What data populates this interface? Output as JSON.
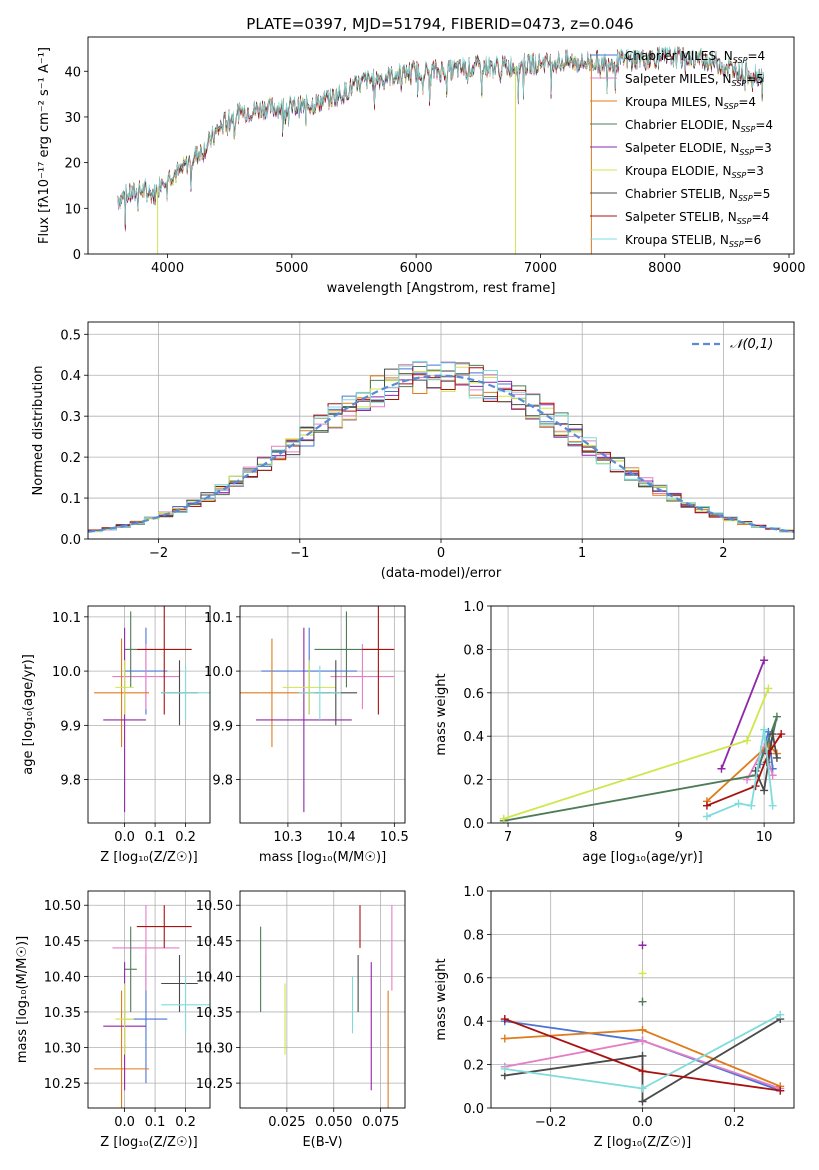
{
  "figure_title": "PLATE=0397, MJD=51794, FIBERID=0473, z=0.046",
  "chart_data": [
    {
      "id": "spectrum",
      "type": "line",
      "title": "PLATE=0397, MJD=51794, FIBERID=0473, z=0.046",
      "xlabel": "wavelength [Angstrom, rest frame]",
      "ylabel": "Flux [fλ10⁻¹⁷ erg cm⁻² s⁻¹ A⁻¹]",
      "xlim": [
        3360,
        9040
      ],
      "ylim": [
        0,
        47.5
      ],
      "xticks": [
        4000,
        5000,
        6000,
        7000,
        8000,
        9000
      ],
      "yticks": [
        0,
        10,
        20,
        30,
        40
      ],
      "grid": false,
      "legend": "upper-right",
      "continuum": {
        "x": [
          3600,
          3700,
          3800,
          3900,
          3950,
          4000,
          4100,
          4200,
          4300,
          4400,
          4500,
          4600,
          4800,
          5000,
          5200,
          5400,
          5600,
          5800,
          6000,
          6200,
          6500,
          6800,
          7000,
          7200,
          7400,
          7600,
          7800,
          8000,
          8200,
          8400,
          8600,
          8800
        ],
        "y": [
          12,
          13,
          14,
          13,
          16,
          17,
          18,
          21,
          23,
          27,
          30,
          31,
          32,
          32,
          33,
          35,
          38,
          39,
          40,
          40,
          41,
          41,
          42,
          42,
          42,
          42,
          43,
          43,
          43,
          42,
          40,
          39
        ]
      },
      "series": [
        {
          "name": "Chabrier MILES, N$_{SSP}$=4",
          "color": "#4a74d6"
        },
        {
          "name": "Salpeter MILES, N$_{SSP}$=5",
          "color": "#e67ec6"
        },
        {
          "name": "Kroupa MILES, N$_{SSP}$=4",
          "color": "#e07b1a"
        },
        {
          "name": "Chabrier ELODIE, N$_{SSP}$=4",
          "color": "#4d7c56"
        },
        {
          "name": "Salpeter ELODIE, N$_{SSP}$=3",
          "color": "#8e27a8"
        },
        {
          "name": "Kroupa ELODIE, N$_{SSP}$=3",
          "color": "#cfe64c"
        },
        {
          "name": "Chabrier STELIB, N$_{SSP}$=5",
          "color": "#4a4a4a"
        },
        {
          "name": "Salpeter STELIB, N$_{SSP}$=4",
          "color": "#a8110f"
        },
        {
          "name": "Kroupa STELIB, N$_{SSP}$=6",
          "color": "#7fdcdc"
        }
      ],
      "legend_labels": [
        [
          "Chabrier MILES, N",
          "SSP",
          "=4"
        ],
        [
          "Salpeter MILES, N",
          "SSP",
          "=5"
        ],
        [
          "Kroupa MILES, N",
          "SSP",
          "=4"
        ],
        [
          "Chabrier ELODIE, N",
          "SSP",
          "=4"
        ],
        [
          "Salpeter ELODIE, N",
          "SSP",
          "=3"
        ],
        [
          "Kroupa ELODIE, N",
          "SSP",
          "=3"
        ],
        [
          "Chabrier STELIB, N",
          "SSP",
          "=5"
        ],
        [
          "Salpeter STELIB, N",
          "SSP",
          "=4"
        ],
        [
          "Kroupa STELIB, N",
          "SSP",
          "=6"
        ]
      ],
      "dropouts": [
        {
          "x": 3920,
          "color": "#cfe64c"
        },
        {
          "x": 6800,
          "color": "#cfe64c"
        },
        {
          "x": 7410,
          "color": "#e07b1a"
        }
      ]
    },
    {
      "id": "residuals",
      "type": "histogram",
      "xlabel": "(data-model)/error",
      "ylabel": "Normed distribution",
      "xlim": [
        -2.5,
        2.5
      ],
      "ylim": [
        0,
        0.53
      ],
      "xticks": [
        -2,
        -1,
        0,
        1,
        2
      ],
      "yticks": [
        0.0,
        0.1,
        0.2,
        0.3,
        0.4,
        0.5
      ],
      "grid": true,
      "legend": "upper-right",
      "reference": {
        "name": "𝒩(0,1)",
        "color": "#5b8ad6"
      },
      "bin_width": 0.1
    },
    {
      "id": "z_age",
      "type": "errorbar",
      "xlabel": "Z [log₁₀(Z/Z☉)]",
      "ylabel": "age [log₁₀(age/yr)]",
      "xlim": [
        -0.12,
        0.28
      ],
      "ylim": [
        9.72,
        10.12
      ],
      "xticks": [
        0.0,
        0.1,
        0.2
      ],
      "yticks": [
        9.8,
        9.9,
        10.0,
        10.1
      ],
      "grid": true
    },
    {
      "id": "mass_age",
      "type": "errorbar",
      "xlabel": "mass [log₁₀(M/M☉)]",
      "ylabel": "",
      "xlim": [
        10.21,
        10.52
      ],
      "ylim": [
        9.72,
        10.12
      ],
      "xticks": [
        10.3,
        10.4,
        10.5
      ],
      "yticks": [
        9.8,
        9.9,
        10.0,
        10.1
      ],
      "grid": true
    },
    {
      "id": "age_weight",
      "type": "line",
      "xlabel": "age [log₁₀(age/yr)]",
      "ylabel": "mass weight",
      "xlim": [
        6.8,
        10.35
      ],
      "ylim": [
        0,
        1
      ],
      "xticks": [
        7,
        8,
        9,
        10
      ],
      "yticks": [
        0.0,
        0.2,
        0.4,
        0.6,
        0.8,
        1.0
      ],
      "grid": true
    },
    {
      "id": "z_mass",
      "type": "errorbar",
      "xlabel": "Z [log₁₀(Z/Z☉)]",
      "ylabel": "mass [log₁₀(M/M☉)]",
      "xlim": [
        -0.12,
        0.28
      ],
      "ylim": [
        10.215,
        10.52
      ],
      "xticks": [
        0.0,
        0.1,
        0.2
      ],
      "yticks": [
        10.25,
        10.3,
        10.35,
        10.4,
        10.45,
        10.5
      ],
      "grid": true
    },
    {
      "id": "ebv_mass",
      "type": "errorbar",
      "xlabel": "E(B-V)",
      "ylabel": "",
      "xlim": [
        0.0,
        0.088
      ],
      "ylim": [
        10.215,
        10.52
      ],
      "xticks": [
        0.025,
        0.05,
        0.075
      ],
      "xtick_labels": [
        "0.025",
        "0.050",
        "0.075"
      ],
      "yticks": [
        10.25,
        10.3,
        10.35,
        10.4,
        10.45,
        10.5
      ],
      "grid": true
    },
    {
      "id": "z_weight",
      "type": "line",
      "xlabel": "Z [log₁₀(Z/Z☉)]",
      "ylabel": "mass weight",
      "xlim": [
        -0.33,
        0.33
      ],
      "ylim": [
        0,
        1
      ],
      "xticks": [
        -0.2,
        0.0,
        0.2
      ],
      "yticks": [
        0.0,
        0.2,
        0.4,
        0.6,
        0.8,
        1.0
      ],
      "grid": true
    }
  ],
  "fits": [
    {
      "name": "Chabrier MILES",
      "color": "#4a74d6",
      "Z": [
        0.07,
        0.07
      ],
      "age": [
        10.0,
        0.08
      ],
      "mass": [
        10.34,
        0.09
      ],
      "ebv": null
    },
    {
      "name": "Salpeter MILES",
      "color": "#e67ec6",
      "Z": [
        0.07,
        0.11
      ],
      "age": [
        9.99,
        0.06
      ],
      "mass": [
        10.44,
        0.06
      ],
      "ebv": [
        0.081,
        0.08
      ]
    },
    {
      "name": "Kroupa MILES",
      "color": "#e07b1a",
      "Z": [
        -0.01,
        0.09
      ],
      "age": [
        9.96,
        0.1
      ],
      "mass": [
        10.27,
        0.11
      ],
      "ebv": [
        0.079,
        0.09
      ]
    },
    {
      "name": "Chabrier ELODIE",
      "color": "#4d7c56",
      "Z": [
        0.02,
        0.02
      ],
      "age": [
        10.04,
        0.07
      ],
      "mass": [
        10.41,
        0.06
      ],
      "ebv": [
        0.011,
        0.03
      ]
    },
    {
      "name": "Salpeter ELODIE",
      "color": "#8e27a8",
      "Z": [
        0.0,
        0.07
      ],
      "age": [
        9.91,
        0.17
      ],
      "mass": [
        10.33,
        0.09
      ],
      "ebv": [
        0.07,
        0.05
      ]
    },
    {
      "name": "Kroupa ELODIE",
      "color": "#cfe64c",
      "Z": [
        0.0,
        0.03
      ],
      "age": [
        9.97,
        0.05
      ],
      "mass": [
        10.34,
        0.05
      ],
      "ebv": [
        0.024,
        0.03
      ]
    },
    {
      "name": "Chabrier STELIB",
      "color": "#4a4a4a",
      "Z": [
        0.18,
        0.06
      ],
      "age": [
        9.96,
        0.06
      ],
      "mass": [
        10.39,
        0.04
      ],
      "ebv": [
        0.063,
        0.04
      ]
    },
    {
      "name": "Salpeter STELIB",
      "color": "#a8110f",
      "Z": [
        0.13,
        0.09
      ],
      "age": [
        10.04,
        0.12
      ],
      "mass": [
        10.47,
        0.03
      ],
      "ebv": [
        0.064,
        0.03
      ]
    },
    {
      "name": "Kroupa STELIB",
      "color": "#7fdcdc",
      "Z": [
        0.2,
        0.08
      ],
      "age": [
        9.96,
        0.05
      ],
      "mass": [
        10.36,
        0.04
      ],
      "ebv": [
        0.06,
        0.04
      ]
    }
  ],
  "weights_age": [
    {
      "color": "#4a74d6",
      "pts": [
        [
          9.95,
          0.27
        ],
        [
          10.05,
          0.42
        ],
        [
          10.1,
          0.25
        ]
      ]
    },
    {
      "color": "#e67ec6",
      "pts": [
        [
          9.8,
          0.2
        ],
        [
          10.0,
          0.35
        ],
        [
          10.1,
          0.22
        ]
      ]
    },
    {
      "color": "#e07b1a",
      "pts": [
        [
          9.33,
          0.1
        ],
        [
          10.05,
          0.36
        ],
        [
          10.15,
          0.32
        ]
      ]
    },
    {
      "color": "#4d7c56",
      "pts": [
        [
          6.95,
          0.01
        ],
        [
          9.9,
          0.22
        ],
        [
          10.15,
          0.49
        ],
        [
          10.03,
          0.28
        ]
      ]
    },
    {
      "color": "#8e27a8",
      "pts": [
        [
          9.5,
          0.25
        ],
        [
          10.0,
          0.75
        ]
      ]
    },
    {
      "color": "#cfe64c",
      "pts": [
        [
          6.95,
          0.02
        ],
        [
          9.8,
          0.38
        ],
        [
          10.05,
          0.62
        ]
      ]
    },
    {
      "color": "#4a4a4a",
      "pts": [
        [
          9.9,
          0.24
        ],
        [
          10.0,
          0.15
        ],
        [
          10.1,
          0.41
        ],
        [
          10.15,
          0.3
        ]
      ]
    },
    {
      "color": "#a8110f",
      "pts": [
        [
          9.33,
          0.08
        ],
        [
          9.9,
          0.17
        ],
        [
          10.05,
          0.32
        ],
        [
          10.2,
          0.41
        ]
      ]
    },
    {
      "color": "#7fdcdc",
      "pts": [
        [
          9.33,
          0.03
        ],
        [
          9.7,
          0.09
        ],
        [
          9.85,
          0.08
        ],
        [
          10.0,
          0.43
        ],
        [
          10.1,
          0.08
        ]
      ]
    }
  ],
  "weights_z": [
    {
      "color": "#4a74d6",
      "pts": [
        [
          -0.3,
          0.4
        ],
        [
          0.0,
          0.31
        ],
        [
          0.3,
          0.08
        ]
      ]
    },
    {
      "color": "#e67ec6",
      "pts": [
        [
          -0.3,
          0.19
        ],
        [
          0.0,
          0.31
        ],
        [
          0.3,
          0.09
        ]
      ]
    },
    {
      "color": "#e07b1a",
      "pts": [
        [
          -0.3,
          0.32
        ],
        [
          0.0,
          0.36
        ],
        [
          0.3,
          0.1
        ]
      ]
    },
    {
      "color": "#4d7c56",
      "pts": [
        [
          0.0,
          0.49
        ]
      ]
    },
    {
      "color": "#8e27a8",
      "pts": [
        [
          0.0,
          0.75
        ]
      ]
    },
    {
      "color": "#cfe64c",
      "pts": [
        [
          0.0,
          0.62
        ]
      ]
    },
    {
      "color": "#4a4a4a",
      "pts": [
        [
          -0.3,
          0.15
        ],
        [
          0.0,
          0.24
        ],
        [
          0.0,
          0.03
        ],
        [
          0.3,
          0.41
        ]
      ]
    },
    {
      "color": "#a8110f",
      "pts": [
        [
          -0.3,
          0.41
        ],
        [
          0.0,
          0.17
        ],
        [
          0.3,
          0.08
        ]
      ]
    },
    {
      "color": "#7fdcdc",
      "pts": [
        [
          -0.3,
          0.18
        ],
        [
          0.0,
          0.09
        ],
        [
          0.3,
          0.43
        ]
      ]
    }
  ]
}
